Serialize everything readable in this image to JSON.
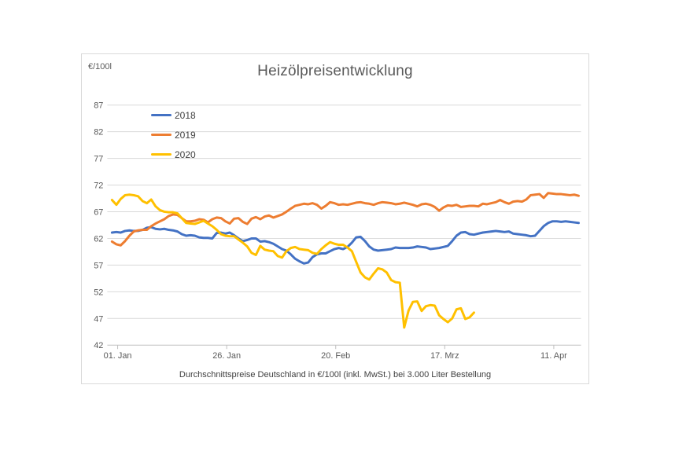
{
  "page": {
    "background": "#FFFFFF"
  },
  "chart": {
    "unit_label": "€/100l",
    "title": "Heizölpreisentwicklung",
    "caption": "Durchschnittspreise Deutschland in €/100l (inkl. MwSt.) bei 3.000 Liter Bestellung"
  },
  "chart_data": {
    "type": "line",
    "title": "Heizölpreisentwicklung",
    "ylabel": "€/100l",
    "ylim": [
      42,
      87
    ],
    "yticks": [
      87,
      82,
      77,
      72,
      67,
      62,
      57,
      52,
      47,
      42
    ],
    "grid": true,
    "legend_position": "inside-top-left",
    "x_axis": {
      "unit": "days-from-01-Jan",
      "tick_labels": [
        "01. Jan",
        "26. Jan",
        "20. Feb",
        "17. Mrz",
        "11. Apr"
      ],
      "tick_days": [
        1.3,
        26.3,
        51.3,
        76.3,
        101.3
      ]
    },
    "style": {
      "grid_color": "#D9D9D9",
      "axis_color": "#BFBFBF",
      "text_color": "#595959",
      "line_width": 3
    },
    "caption": "Durchschnittspreise Deutschland in €/100l (inkl. MwSt.) bei 3.000 Liter Bestellung",
    "series": [
      {
        "name": "2018",
        "color": "#4472C4",
        "start_day": 0,
        "values": [
          63.1,
          63.2,
          63.1,
          63.4,
          63.5,
          63.4,
          63.4,
          63.6,
          64.0,
          64.1,
          63.8,
          63.7,
          63.8,
          63.6,
          63.5,
          63.3,
          62.8,
          62.5,
          62.6,
          62.5,
          62.2,
          62.1,
          62.1,
          62.0,
          63.0,
          63.1,
          62.9,
          63.1,
          62.6,
          62.0,
          61.5,
          61.7,
          62.0,
          62.0,
          61.4,
          61.5,
          61.3,
          61.0,
          60.5,
          60.0,
          59.7,
          59.0,
          58.2,
          57.7,
          57.3,
          57.5,
          58.5,
          59.0,
          59.2,
          59.2,
          59.6,
          60.0,
          60.2,
          60.0,
          60.4,
          61.2,
          62.2,
          62.3,
          61.5,
          60.5,
          59.9,
          59.7,
          59.8,
          59.9,
          60.0,
          60.3,
          60.2,
          60.2,
          60.2,
          60.3,
          60.5,
          60.4,
          60.3,
          60.0,
          60.1,
          60.2,
          60.4,
          60.6,
          61.5,
          62.5,
          63.1,
          63.2,
          62.8,
          62.7,
          62.9,
          63.1,
          63.2,
          63.3,
          63.4,
          63.3,
          63.2,
          63.3,
          62.9,
          62.8,
          62.7,
          62.6,
          62.4,
          62.5,
          63.4,
          64.3,
          64.9,
          65.2,
          65.2,
          65.1,
          65.2,
          65.1,
          65.0,
          64.9
        ]
      },
      {
        "name": "2019",
        "color": "#ED7D31",
        "start_day": 0,
        "values": [
          61.4,
          60.9,
          60.7,
          61.5,
          62.5,
          63.3,
          63.5,
          63.6,
          63.6,
          64.3,
          64.8,
          65.2,
          65.6,
          66.2,
          66.5,
          66.4,
          65.8,
          65.2,
          65.2,
          65.3,
          65.6,
          65.5,
          65.0,
          65.6,
          65.9,
          65.8,
          65.2,
          64.8,
          65.7,
          65.8,
          65.1,
          64.7,
          65.7,
          66.0,
          65.6,
          66.1,
          66.3,
          65.9,
          66.2,
          66.5,
          67.0,
          67.6,
          68.1,
          68.3,
          68.5,
          68.4,
          68.6,
          68.3,
          67.6,
          68.1,
          68.8,
          68.6,
          68.3,
          68.4,
          68.3,
          68.5,
          68.7,
          68.8,
          68.6,
          68.5,
          68.3,
          68.6,
          68.8,
          68.7,
          68.6,
          68.4,
          68.5,
          68.7,
          68.5,
          68.3,
          68.0,
          68.4,
          68.5,
          68.3,
          67.9,
          67.2,
          67.8,
          68.2,
          68.1,
          68.3,
          67.9,
          68.0,
          68.1,
          68.1,
          68.0,
          68.5,
          68.4,
          68.6,
          68.8,
          69.2,
          68.8,
          68.5,
          68.9,
          69.0,
          68.9,
          69.3,
          70.1,
          70.2,
          70.3,
          69.6,
          70.5,
          70.4,
          70.3,
          70.3,
          70.2,
          70.1,
          70.2,
          70.0
        ]
      },
      {
        "name": "2020",
        "color": "#FFC000",
        "start_day": 0,
        "values": [
          69.2,
          68.3,
          69.4,
          70.1,
          70.2,
          70.1,
          69.9,
          69.0,
          68.6,
          69.3,
          68.0,
          67.3,
          67.0,
          66.9,
          66.9,
          66.7,
          65.8,
          64.9,
          64.8,
          64.7,
          65.0,
          65.3,
          64.8,
          64.3,
          63.6,
          62.8,
          62.5,
          62.4,
          62.4,
          61.8,
          61.2,
          60.5,
          59.3,
          58.9,
          60.6,
          59.9,
          59.7,
          59.6,
          58.7,
          58.4,
          59.6,
          60.2,
          60.4,
          60.0,
          59.9,
          59.8,
          59.3,
          59.1,
          60.0,
          60.7,
          61.3,
          61.0,
          60.8,
          60.8,
          60.3,
          59.6,
          57.6,
          55.6,
          54.7,
          54.3,
          55.4,
          56.4,
          56.2,
          55.6,
          54.2,
          53.8,
          53.7,
          45.3,
          48.5,
          50.1,
          50.2,
          48.4,
          49.3,
          49.5,
          49.4,
          47.6,
          46.9,
          46.3,
          47.0,
          48.7,
          48.9,
          46.9,
          47.2,
          48.1
        ]
      }
    ]
  }
}
